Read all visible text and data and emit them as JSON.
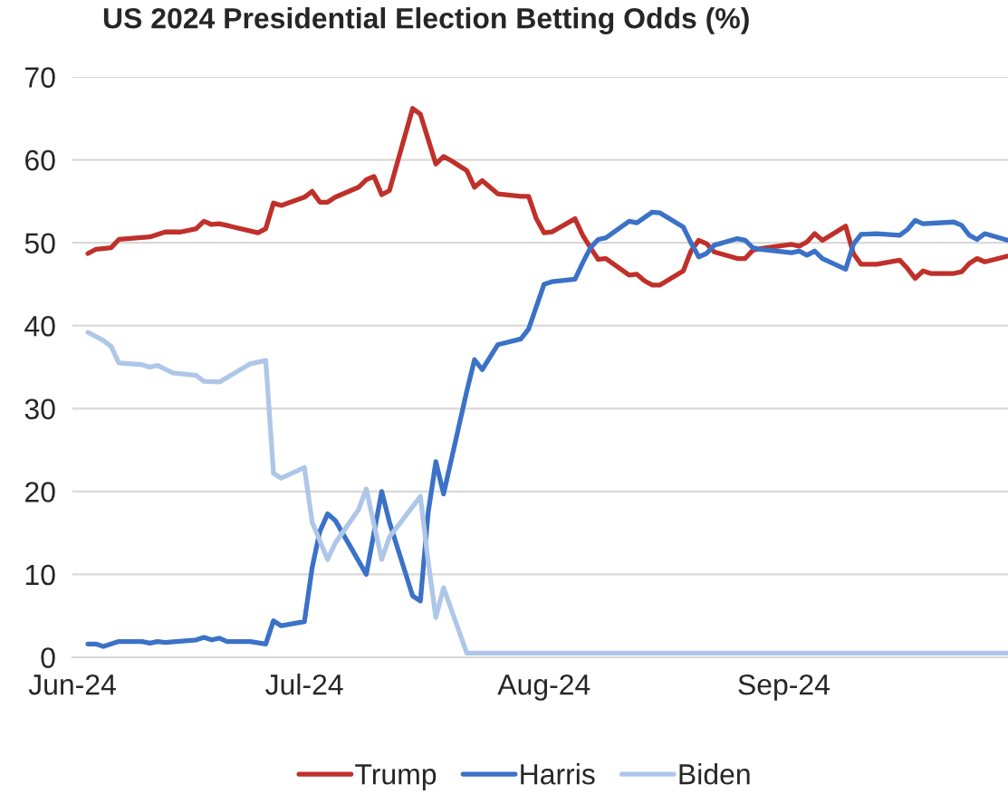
{
  "chart_data": {
    "type": "line",
    "title": "US 2024 Presidential Election Betting Odds (%)",
    "xlim": [
      "2024-06-01",
      "2024-09-30"
    ],
    "xticks": [
      {
        "value": "2024-06-01",
        "label": "Jun-24"
      },
      {
        "value": "2024-07-01",
        "label": "Jul-24"
      },
      {
        "value": "2024-08-01",
        "label": "Aug-24"
      },
      {
        "value": "2024-09-01",
        "label": "Sep-24"
      }
    ],
    "ylim": [
      0,
      70
    ],
    "yticks": [
      0,
      10,
      20,
      30,
      40,
      50,
      60,
      70
    ],
    "grid": "y",
    "legend": "bottom",
    "line_style": "solid",
    "series": [
      {
        "name": "Trump",
        "color": "#c0302a",
        "x": [
          "2024-06-03",
          "2024-06-04",
          "2024-06-06",
          "2024-06-07",
          "2024-06-11",
          "2024-06-13",
          "2024-06-15",
          "2024-06-17",
          "2024-06-18",
          "2024-06-19",
          "2024-06-20",
          "2024-06-25",
          "2024-06-26",
          "2024-06-27",
          "2024-06-28",
          "2024-07-01",
          "2024-07-02",
          "2024-07-03",
          "2024-07-04",
          "2024-07-05",
          "2024-07-08",
          "2024-07-09",
          "2024-07-10",
          "2024-07-11",
          "2024-07-12",
          "2024-07-15",
          "2024-07-16",
          "2024-07-18",
          "2024-07-19",
          "2024-07-20",
          "2024-07-22",
          "2024-07-23",
          "2024-07-24",
          "2024-07-26",
          "2024-07-29",
          "2024-07-30",
          "2024-07-31",
          "2024-08-01",
          "2024-08-02",
          "2024-08-05",
          "2024-08-06",
          "2024-08-07",
          "2024-08-08",
          "2024-08-09",
          "2024-08-12",
          "2024-08-13",
          "2024-08-14",
          "2024-08-15",
          "2024-08-16",
          "2024-08-19",
          "2024-08-20",
          "2024-08-21",
          "2024-08-22",
          "2024-08-23",
          "2024-08-26",
          "2024-08-27",
          "2024-08-28",
          "2024-08-29",
          "2024-09-02",
          "2024-09-03",
          "2024-09-04",
          "2024-09-05",
          "2024-09-06",
          "2024-09-09",
          "2024-09-10",
          "2024-09-11",
          "2024-09-13",
          "2024-09-16",
          "2024-09-17",
          "2024-09-18",
          "2024-09-19",
          "2024-09-20",
          "2024-09-23",
          "2024-09-24",
          "2024-09-25",
          "2024-09-26",
          "2024-09-27",
          "2024-09-30"
        ],
        "values": [
          48.7,
          49.2,
          49.4,
          50.4,
          50.7,
          51.3,
          51.3,
          51.7,
          52.6,
          52.2,
          52.3,
          51.2,
          51.7,
          54.8,
          54.5,
          55.5,
          56.2,
          54.9,
          54.9,
          55.5,
          56.7,
          57.6,
          58.0,
          55.8,
          56.3,
          66.2,
          65.5,
          59.5,
          60.4,
          59.9,
          58.7,
          56.7,
          57.5,
          55.9,
          55.6,
          55.6,
          52.9,
          51.2,
          51.3,
          52.9,
          50.9,
          49.4,
          48.0,
          48.1,
          46.1,
          46.2,
          45.4,
          44.9,
          44.9,
          46.6,
          49.0,
          50.3,
          49.9,
          48.9,
          48.1,
          48.1,
          49.1,
          49.3,
          49.8,
          49.6,
          50.1,
          51.1,
          50.3,
          52.0,
          48.7,
          47.4,
          47.4,
          47.9,
          46.9,
          45.7,
          46.6,
          46.3,
          46.3,
          46.5,
          47.5,
          48.1,
          47.7,
          48.4
        ]
      },
      {
        "name": "Harris",
        "color": "#3b72c7",
        "x": [
          "2024-06-03",
          "2024-06-04",
          "2024-06-05",
          "2024-06-07",
          "2024-06-10",
          "2024-06-11",
          "2024-06-12",
          "2024-06-13",
          "2024-06-17",
          "2024-06-18",
          "2024-06-19",
          "2024-06-20",
          "2024-06-21",
          "2024-06-24",
          "2024-06-26",
          "2024-06-27",
          "2024-06-28",
          "2024-07-01",
          "2024-07-02",
          "2024-07-03",
          "2024-07-04",
          "2024-07-05",
          "2024-07-09",
          "2024-07-11",
          "2024-07-12",
          "2024-07-15",
          "2024-07-16",
          "2024-07-17",
          "2024-07-18",
          "2024-07-19",
          "2024-07-22",
          "2024-07-23",
          "2024-07-24",
          "2024-07-26",
          "2024-07-29",
          "2024-07-30",
          "2024-07-31",
          "2024-08-01",
          "2024-08-02",
          "2024-08-05",
          "2024-08-06",
          "2024-08-07",
          "2024-08-08",
          "2024-08-09",
          "2024-08-12",
          "2024-08-13",
          "2024-08-15",
          "2024-08-16",
          "2024-08-19",
          "2024-08-20",
          "2024-08-21",
          "2024-08-22",
          "2024-08-23",
          "2024-08-26",
          "2024-08-27",
          "2024-08-28",
          "2024-08-29",
          "2024-09-02",
          "2024-09-03",
          "2024-09-04",
          "2024-09-05",
          "2024-09-06",
          "2024-09-09",
          "2024-09-10",
          "2024-09-11",
          "2024-09-13",
          "2024-09-16",
          "2024-09-17",
          "2024-09-18",
          "2024-09-19",
          "2024-09-23",
          "2024-09-24",
          "2024-09-25",
          "2024-09-26",
          "2024-09-27",
          "2024-09-30"
        ],
        "values": [
          1.6,
          1.6,
          1.3,
          1.9,
          1.9,
          1.7,
          1.9,
          1.8,
          2.1,
          2.4,
          2.1,
          2.3,
          1.9,
          1.9,
          1.6,
          4.4,
          3.8,
          4.3,
          10.8,
          15.2,
          17.3,
          16.5,
          10.0,
          20.0,
          16.3,
          7.4,
          6.8,
          17.4,
          23.6,
          19.7,
          32.1,
          35.9,
          34.7,
          37.7,
          38.4,
          39.6,
          42.3,
          45.0,
          45.3,
          45.6,
          47.6,
          49.4,
          50.4,
          50.6,
          52.6,
          52.4,
          53.7,
          53.6,
          51.9,
          50.0,
          48.3,
          48.7,
          49.7,
          50.5,
          50.3,
          49.4,
          49.2,
          48.8,
          49.0,
          48.5,
          49.0,
          48.1,
          46.8,
          49.8,
          51.0,
          51.1,
          50.9,
          51.6,
          52.7,
          52.3,
          52.5,
          52.1,
          50.9,
          50.4,
          51.1,
          50.3
        ]
      },
      {
        "name": "Biden",
        "color": "#aec6e8",
        "x": [
          "2024-06-03",
          "2024-06-05",
          "2024-06-06",
          "2024-06-07",
          "2024-06-10",
          "2024-06-11",
          "2024-06-12",
          "2024-06-14",
          "2024-06-17",
          "2024-06-18",
          "2024-06-20",
          "2024-06-24",
          "2024-06-26",
          "2024-06-27",
          "2024-06-28",
          "2024-07-01",
          "2024-07-02",
          "2024-07-04",
          "2024-07-05",
          "2024-07-08",
          "2024-07-09",
          "2024-07-11",
          "2024-07-12",
          "2024-07-16",
          "2024-07-17",
          "2024-07-18",
          "2024-07-19",
          "2024-07-22",
          "2024-09-30"
        ],
        "values": [
          39.2,
          38.2,
          37.5,
          35.5,
          35.3,
          35.0,
          35.2,
          34.3,
          34.0,
          33.3,
          33.2,
          35.4,
          35.8,
          22.2,
          21.6,
          22.9,
          16.3,
          11.8,
          13.8,
          17.8,
          20.3,
          11.8,
          14.5,
          19.4,
          11.6,
          4.8,
          8.4,
          0.5,
          0.5
        ]
      }
    ]
  }
}
